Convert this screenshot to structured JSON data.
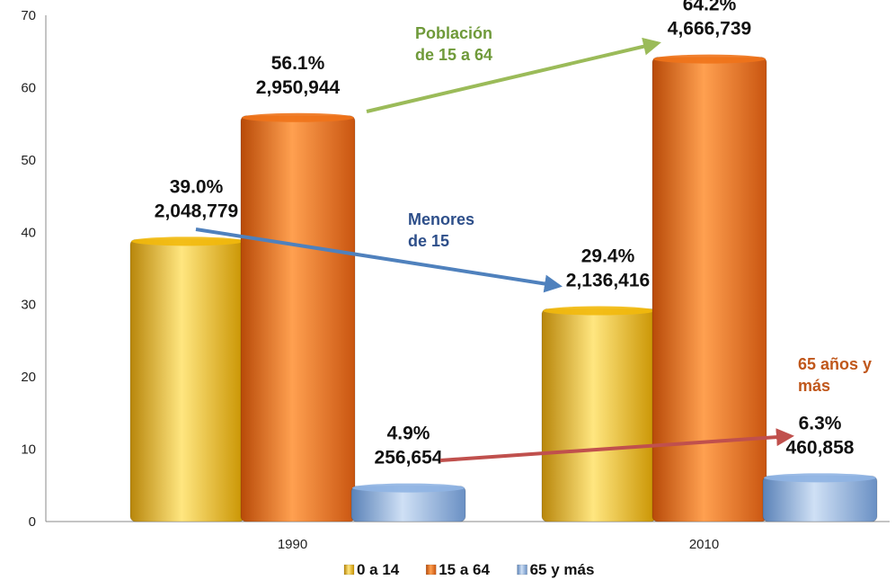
{
  "chart_data": {
    "type": "bar",
    "categories": [
      "1990",
      "2010"
    ],
    "ylim": [
      0,
      70
    ],
    "yticks": [
      0,
      10,
      20,
      30,
      40,
      50,
      60,
      70
    ],
    "series": [
      {
        "name": "0 a 14",
        "color": "#f2b90c",
        "values": [
          39.0,
          29.4
        ],
        "labels": [
          [
            "39.0%",
            "2,048,779"
          ],
          [
            "29.4%",
            "2,136,416"
          ]
        ]
      },
      {
        "name": "15 a 64",
        "color": "#f0731a",
        "values": [
          56.1,
          64.2
        ],
        "labels": [
          [
            "56.1%",
            "2,950,944"
          ],
          [
            "64.2%",
            "4,666,739"
          ]
        ]
      },
      {
        "name": "65 y más",
        "color": "#8fb4e3",
        "values": [
          4.9,
          6.3
        ],
        "labels": [
          [
            "4.9%",
            "256,654"
          ],
          [
            "6.3%",
            "460,858"
          ]
        ]
      }
    ],
    "annotations": [
      {
        "lines": [
          "Población",
          "de 15 a 64"
        ],
        "color": "#6f9a3a",
        "arrow_color": "#9bbb59"
      },
      {
        "lines": [
          "Menores",
          "de 15"
        ],
        "color": "#2e4f8a",
        "arrow_color": "#4f81bd"
      },
      {
        "lines": [
          "65 años y",
          "más"
        ],
        "color": "#c0571b",
        "arrow_color": "#c0504d"
      }
    ],
    "legend": "bottom",
    "grid": false
  }
}
